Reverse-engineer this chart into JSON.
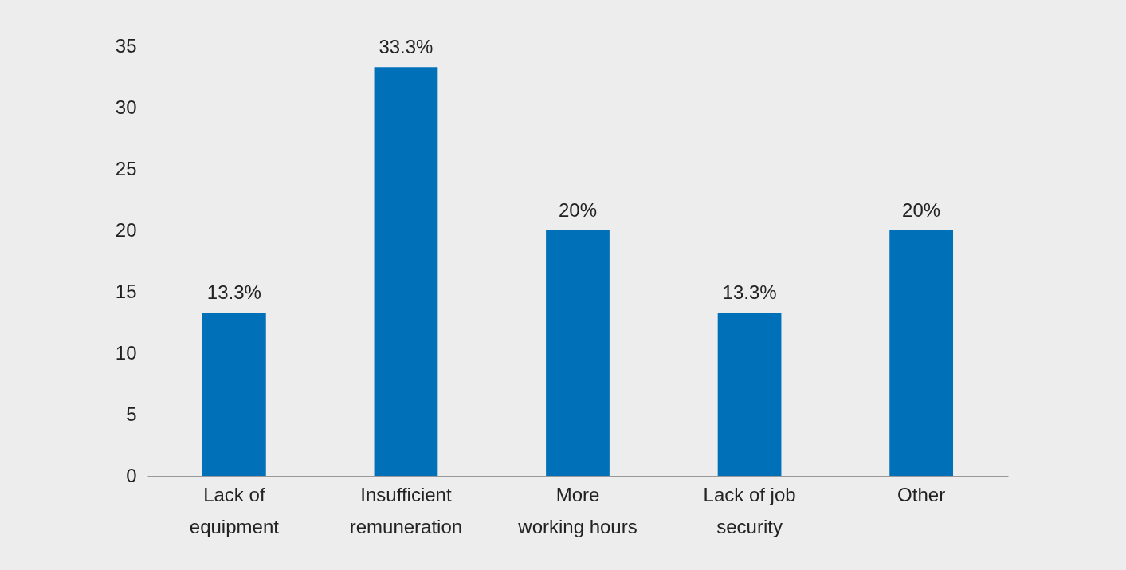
{
  "chart_data": {
    "type": "bar",
    "categories": [
      "Lack of equipment",
      "Insufficient remuneration",
      "More working hours",
      "Lack of job security",
      "Other"
    ],
    "values": [
      13.3,
      33.3,
      20,
      13.3,
      20
    ],
    "value_labels": [
      "13.3%",
      "33.3%",
      "20%",
      "13.3%",
      "20%"
    ],
    "color": "#0070b8",
    "ylim": [
      0,
      35
    ],
    "yticks": [
      0,
      5,
      10,
      15,
      20,
      25,
      30,
      35
    ],
    "grid": false
  }
}
